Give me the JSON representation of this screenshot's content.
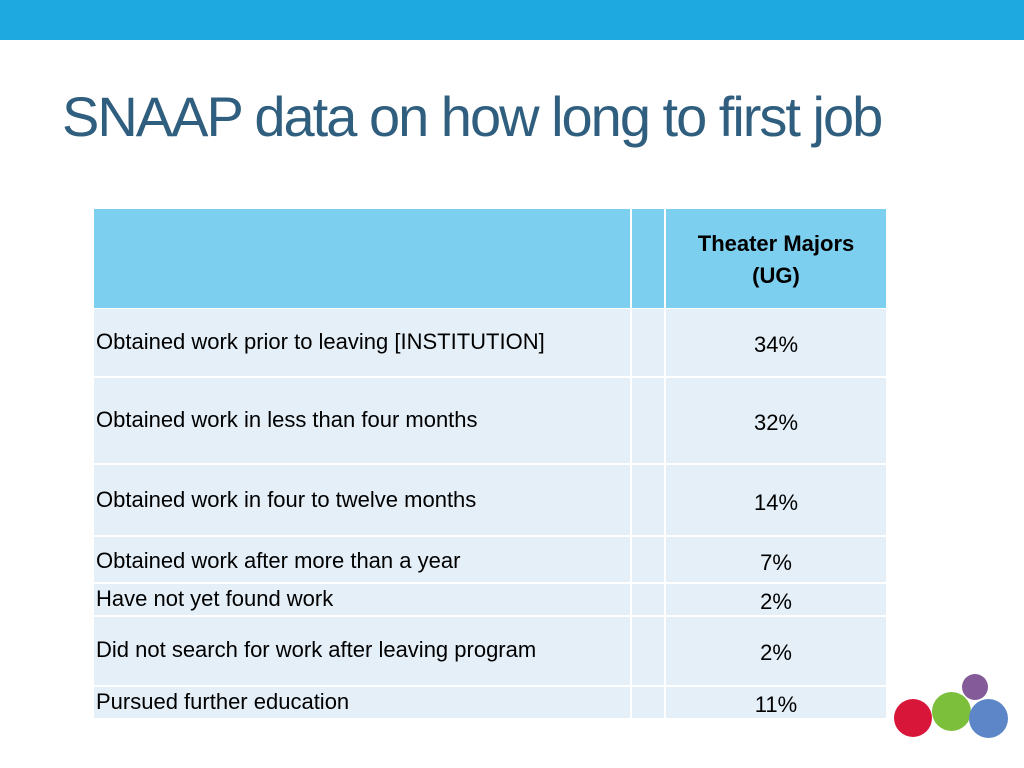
{
  "slide": {
    "title": "SNAAP data on how long to first job"
  },
  "table": {
    "column_header": "Theater Majors (UG)",
    "rows": [
      {
        "label": "Obtained work prior to leaving [INSTITUTION]",
        "value": "34%"
      },
      {
        "label": "Obtained work in less than four months",
        "value": "32%"
      },
      {
        "label": "Obtained work in four to twelve months",
        "value": "14%"
      },
      {
        "label": "Obtained work after more than a year",
        "value": "7%"
      },
      {
        "label": "Have not yet found work",
        "value": "2%"
      },
      {
        "label": "Did not search for work after leaving program",
        "value": "2%"
      },
      {
        "label": "Pursued further education",
        "value": "11%"
      }
    ]
  },
  "colors": {
    "top_bar": "#1fa9e1",
    "title_text": "#2f5e7e",
    "header_fill": "#7ccfef",
    "row_fill": "#e4eff8",
    "logo_purple": "#855a99",
    "logo_red": "#d8163a",
    "logo_green": "#7cbf3a",
    "logo_blue": "#5d86c8"
  }
}
